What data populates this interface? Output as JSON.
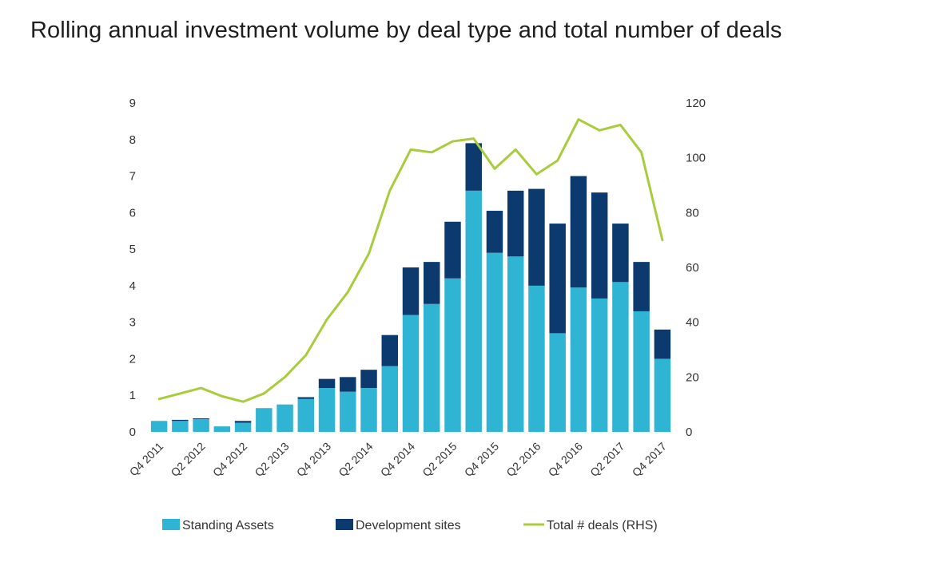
{
  "chart_data": {
    "type": "bar",
    "title": "Rolling annual investment volume by deal type and total number of deals",
    "categories": [
      "Q4 2011",
      "Q1 2012",
      "Q2 2012",
      "Q3 2012",
      "Q4 2012",
      "Q1 2013",
      "Q2 2013",
      "Q3 2013",
      "Q4 2013",
      "Q1 2014",
      "Q2 2014",
      "Q3 2014",
      "Q4 2014",
      "Q1 2015",
      "Q2 2015",
      "Q3 2015",
      "Q4 2015",
      "Q1 2016",
      "Q2 2016",
      "Q3 2016",
      "Q4 2016",
      "Q1 2017",
      "Q2 2017",
      "Q3 2017",
      "Q4 2017"
    ],
    "x_tick_labels": [
      "Q4 2011",
      "",
      "Q2 2012",
      "",
      "Q4 2012",
      "",
      "Q2 2013",
      "",
      "Q4 2013",
      "",
      "Q2 2014",
      "",
      "Q4 2014",
      "",
      "Q2 2015",
      "",
      "Q4 2015",
      "",
      "Q2 2016",
      "",
      "Q4 2016",
      "",
      "Q2 2017",
      "",
      "Q4 2017"
    ],
    "series": [
      {
        "name": "Standing Assets",
        "kind": "stacked-bar",
        "axis": "left",
        "color": "#30b4d4",
        "values": [
          0.3,
          0.3,
          0.35,
          0.15,
          0.25,
          0.65,
          0.75,
          0.9,
          1.2,
          1.1,
          1.2,
          1.8,
          3.2,
          3.5,
          4.2,
          6.6,
          4.9,
          4.8,
          4.0,
          2.7,
          3.95,
          3.65,
          4.1,
          3.3,
          2.0
        ]
      },
      {
        "name": "Development sites",
        "kind": "stacked-bar",
        "axis": "left",
        "color": "#0d3a6e",
        "values": [
          0.0,
          0.03,
          0.02,
          0.0,
          0.05,
          0.0,
          0.0,
          0.05,
          0.25,
          0.4,
          0.5,
          0.85,
          1.3,
          1.15,
          1.55,
          1.3,
          1.15,
          1.8,
          2.65,
          3.0,
          3.05,
          2.9,
          1.6,
          1.35,
          0.8
        ]
      },
      {
        "name": "Total # deals (RHS)",
        "kind": "line",
        "axis": "right",
        "color": "#a8cc3c",
        "values": [
          12,
          14,
          16,
          13,
          11,
          14,
          20,
          28,
          41,
          51,
          65,
          88,
          103,
          102,
          106,
          107,
          96,
          103,
          94,
          99,
          114,
          110,
          112,
          102,
          70
        ]
      }
    ],
    "y_left": {
      "min": 0,
      "max": 9,
      "ticks": [
        0,
        1,
        2,
        3,
        4,
        5,
        6,
        7,
        8,
        9
      ]
    },
    "y_right": {
      "min": 0,
      "max": 120,
      "ticks": [
        0,
        20,
        40,
        60,
        80,
        100,
        120
      ]
    },
    "legend": [
      "Standing Assets",
      "Development sites",
      "Total # deals (RHS)"
    ],
    "legend_position": "bottom",
    "grid": false
  }
}
